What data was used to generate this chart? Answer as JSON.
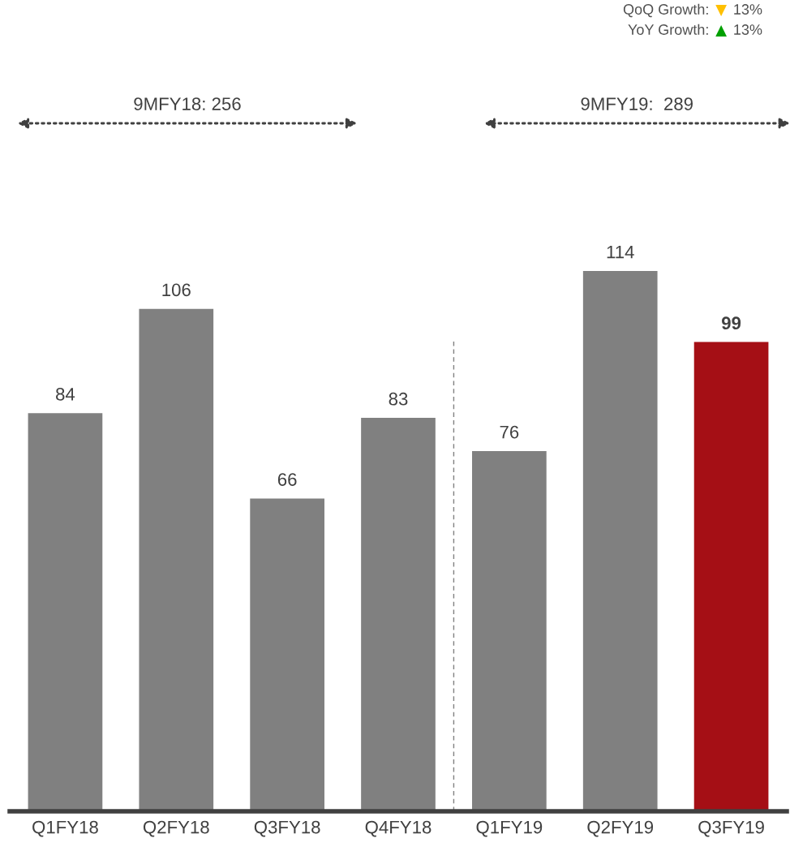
{
  "chart_data": {
    "type": "bar",
    "categories": [
      "Q1FY18",
      "Q2FY18",
      "Q3FY18",
      "Q4FY18",
      "Q1FY19",
      "Q2FY19",
      "Q3FY19"
    ],
    "values": [
      84,
      106,
      66,
      83,
      76,
      114,
      99
    ],
    "colors": [
      "#808080",
      "#808080",
      "#808080",
      "#808080",
      "#808080",
      "#808080",
      "#a50f15"
    ],
    "data_labels": true,
    "tick_labels": "x",
    "grid": false,
    "annotations": [
      "QoQ Growth: ▼ 13%",
      "YoY Growth: ▲ 13%",
      "9MFY18: 256",
      "9MFY19:  289"
    ]
  }
}
